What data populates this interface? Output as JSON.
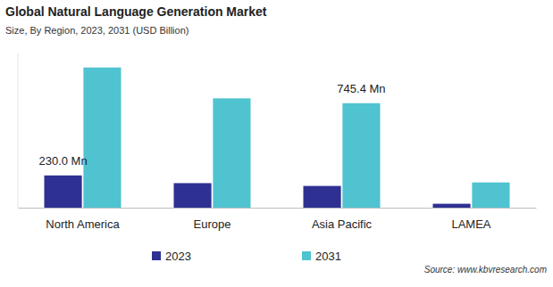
{
  "chart_data": {
    "type": "bar",
    "title": "Global Natural Language Generation Market",
    "subtitle": "Size, By Region, 2023, 2031 (USD Billion)",
    "categories": [
      "North America",
      "Europe",
      "Asia Pacific",
      "LAMEA"
    ],
    "series": [
      {
        "name": "2023",
        "color": "#2e3192",
        "values": [
          230.0,
          175,
          155,
          28
        ]
      },
      {
        "name": "2031",
        "color": "#4fc3d0",
        "values": [
          1000,
          780,
          745.4,
          180
        ]
      }
    ],
    "ylim": [
      0,
      1100
    ],
    "tick_labels": "x",
    "grid": false,
    "legend": "bottom",
    "annotations": [
      {
        "text": "230.0 Mn",
        "category": "North America",
        "series": "2023"
      },
      {
        "text": "745.4 Mn",
        "category": "Asia Pacific",
        "series": "2031"
      }
    ],
    "source": "Source: www.kbvresearch.com"
  }
}
